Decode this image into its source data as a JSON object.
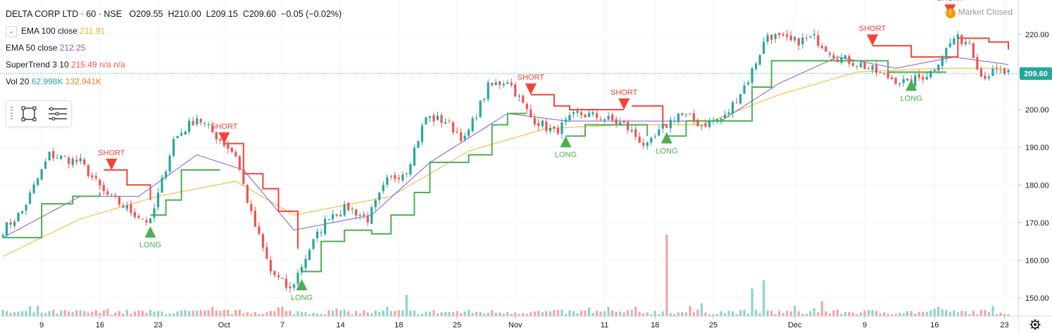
{
  "header": {
    "symbol": "DELTA CORP LTD · 60 · NSE",
    "open": "O209.55",
    "high": "H210.00",
    "low": "L209.15",
    "close": "C209.60",
    "change": "−0.05 (−0.02%)",
    "status": "Market Closed"
  },
  "indicators": [
    {
      "label": "EMA 100 close",
      "value": "211.91",
      "color": "#f0b429"
    },
    {
      "label": "EMA 50 close",
      "value": "212.25",
      "color": "#7b5cd6"
    },
    {
      "label": "SuperTrend 3 10",
      "value": "215.49  n/a  n/a",
      "color": "#ef5350"
    },
    {
      "label": "Vol 20",
      "value": "62.998K",
      "value2": "132.941K",
      "color": "#26a69a",
      "color2": "#f57f17"
    }
  ],
  "colors": {
    "up": "#26a69a",
    "down": "#ef5350",
    "ema100": "#f0b429",
    "ema50": "#7b5cd6",
    "st_up": "#4caf50",
    "st_down": "#f44336",
    "vol_up": "#8fd3cc",
    "vol_down": "#f5a3a3"
  },
  "chart_data": {
    "type": "candlestick",
    "price_axis": {
      "ticks": [
        "150.00",
        "160.00",
        "170.00",
        "180.00",
        "190.00",
        "200.00",
        "210.00",
        "220.00"
      ],
      "tick_values": [
        150,
        160,
        170,
        180,
        190,
        200,
        210,
        220
      ],
      "range": [
        148,
        225
      ],
      "last_price": 209.6,
      "last_price_label": "209.60"
    },
    "time_axis": {
      "labels": [
        "9",
        "16",
        "23",
        "Oct",
        "7",
        "14",
        "18",
        "25",
        "Nov",
        "11",
        "18",
        "25",
        "Dec",
        "9",
        "16",
        "23"
      ],
      "label_bar_index": [
        10,
        25,
        40,
        57,
        72,
        87,
        102,
        117,
        132,
        155,
        168,
        183,
        204,
        222,
        240,
        258
      ],
      "bar_count": 260
    },
    "close_anchors": [
      [
        0,
        168
      ],
      [
        5,
        173
      ],
      [
        12,
        188
      ],
      [
        20,
        186
      ],
      [
        26,
        178
      ],
      [
        33,
        173
      ],
      [
        38,
        170
      ],
      [
        44,
        192
      ],
      [
        50,
        198
      ],
      [
        56,
        192
      ],
      [
        60,
        188
      ],
      [
        64,
        172
      ],
      [
        69,
        157
      ],
      [
        74,
        152
      ],
      [
        79,
        163
      ],
      [
        84,
        172
      ],
      [
        89,
        174
      ],
      [
        94,
        171
      ],
      [
        99,
        181
      ],
      [
        104,
        184
      ],
      [
        109,
        198
      ],
      [
        114,
        197
      ],
      [
        119,
        192
      ],
      [
        125,
        206
      ],
      [
        130,
        208
      ],
      [
        136,
        198
      ],
      [
        142,
        194
      ],
      [
        148,
        199
      ],
      [
        154,
        198
      ],
      [
        160,
        196
      ],
      [
        166,
        190
      ],
      [
        170,
        195
      ],
      [
        174,
        199
      ],
      [
        180,
        196
      ],
      [
        186,
        198
      ],
      [
        192,
        208
      ],
      [
        197,
        220
      ],
      [
        203,
        218
      ],
      [
        209,
        219
      ],
      [
        215,
        214
      ],
      [
        221,
        212
      ],
      [
        227,
        209
      ],
      [
        233,
        207
      ],
      [
        239,
        210
      ],
      [
        245,
        219
      ],
      [
        249,
        218
      ],
      [
        252,
        209
      ],
      [
        256,
        210
      ],
      [
        259,
        209.6
      ]
    ],
    "supertrend": {
      "up_segments": [
        [
          [
            0,
            166
          ],
          [
            10,
            175
          ],
          [
            18,
            177
          ],
          [
            25,
            178
          ]
        ],
        [
          [
            38,
            172
          ],
          [
            42,
            176
          ],
          [
            46,
            184
          ],
          [
            56,
            184
          ]
        ],
        [
          [
            77,
            157
          ],
          [
            82,
            165
          ],
          [
            88,
            168
          ],
          [
            95,
            167
          ],
          [
            100,
            172
          ],
          [
            106,
            178
          ],
          [
            110,
            186
          ],
          [
            120,
            188
          ],
          [
            126,
            196
          ],
          [
            130,
            199
          ],
          [
            135,
            199
          ]
        ],
        [
          [
            145,
            193
          ],
          [
            150,
            196
          ],
          [
            166,
            193
          ]
        ],
        [
          [
            171,
            193
          ],
          [
            176,
            197
          ],
          [
            185,
            197
          ],
          [
            193,
            206
          ],
          [
            198,
            213
          ],
          [
            218,
            213
          ],
          [
            228,
            210
          ],
          [
            243,
            210
          ]
        ]
      ],
      "down_segments": [
        [
          [
            26,
            184
          ],
          [
            32,
            180
          ],
          [
            38,
            176
          ]
        ],
        [
          [
            57,
            191
          ],
          [
            62,
            183
          ],
          [
            67,
            179
          ],
          [
            71,
            173
          ],
          [
            76,
            163
          ]
        ],
        [
          [
            136,
            204
          ],
          [
            142,
            201
          ],
          [
            146,
            200
          ],
          [
            160,
            200
          ]
        ],
        [
          [
            162,
            201
          ],
          [
            170,
            196
          ],
          [
            171,
            196
          ]
        ],
        [
          [
            224,
            217
          ],
          [
            234,
            214
          ],
          [
            244,
            214
          ],
          [
            246,
            219
          ],
          [
            254,
            218
          ],
          [
            259,
            216
          ]
        ]
      ]
    },
    "ema50_anchors": [
      [
        0,
        166
      ],
      [
        20,
        177
      ],
      [
        35,
        177
      ],
      [
        50,
        188
      ],
      [
        62,
        184
      ],
      [
        75,
        168
      ],
      [
        95,
        172
      ],
      [
        110,
        186
      ],
      [
        130,
        199
      ],
      [
        145,
        197
      ],
      [
        165,
        197
      ],
      [
        185,
        197
      ],
      [
        200,
        207
      ],
      [
        215,
        214
      ],
      [
        230,
        211
      ],
      [
        245,
        214
      ],
      [
        259,
        212
      ]
    ],
    "ema100_anchors": [
      [
        0,
        161
      ],
      [
        20,
        171
      ],
      [
        40,
        177
      ],
      [
        60,
        181
      ],
      [
        75,
        172
      ],
      [
        100,
        177
      ],
      [
        120,
        189
      ],
      [
        140,
        195
      ],
      [
        160,
        196
      ],
      [
        180,
        196
      ],
      [
        200,
        204
      ],
      [
        220,
        210
      ],
      [
        240,
        211
      ],
      [
        259,
        211
      ]
    ],
    "signals": [
      {
        "type": "SHORT",
        "bar": 28,
        "price": 184
      },
      {
        "type": "LONG",
        "bar": 38,
        "price": 169
      },
      {
        "type": "SHORT",
        "bar": 57,
        "price": 191
      },
      {
        "type": "LONG",
        "bar": 77,
        "price": 155
      },
      {
        "type": "SHORT",
        "bar": 136,
        "price": 204
      },
      {
        "type": "LONG",
        "bar": 145,
        "price": 193
      },
      {
        "type": "SHORT",
        "bar": 160,
        "price": 200
      },
      {
        "type": "LONG",
        "bar": 171,
        "price": 194
      },
      {
        "type": "SHORT",
        "bar": 224,
        "price": 217
      },
      {
        "type": "LONG",
        "bar": 234,
        "price": 208
      },
      {
        "type": "SHORT",
        "bar": 244,
        "price": 225
      }
    ],
    "volume_spikes": [
      [
        171,
        1.0
      ],
      [
        196,
        0.44
      ],
      [
        193,
        0.34
      ],
      [
        104,
        0.26
      ],
      [
        211,
        0.18
      ],
      [
        180,
        0.16
      ]
    ]
  }
}
